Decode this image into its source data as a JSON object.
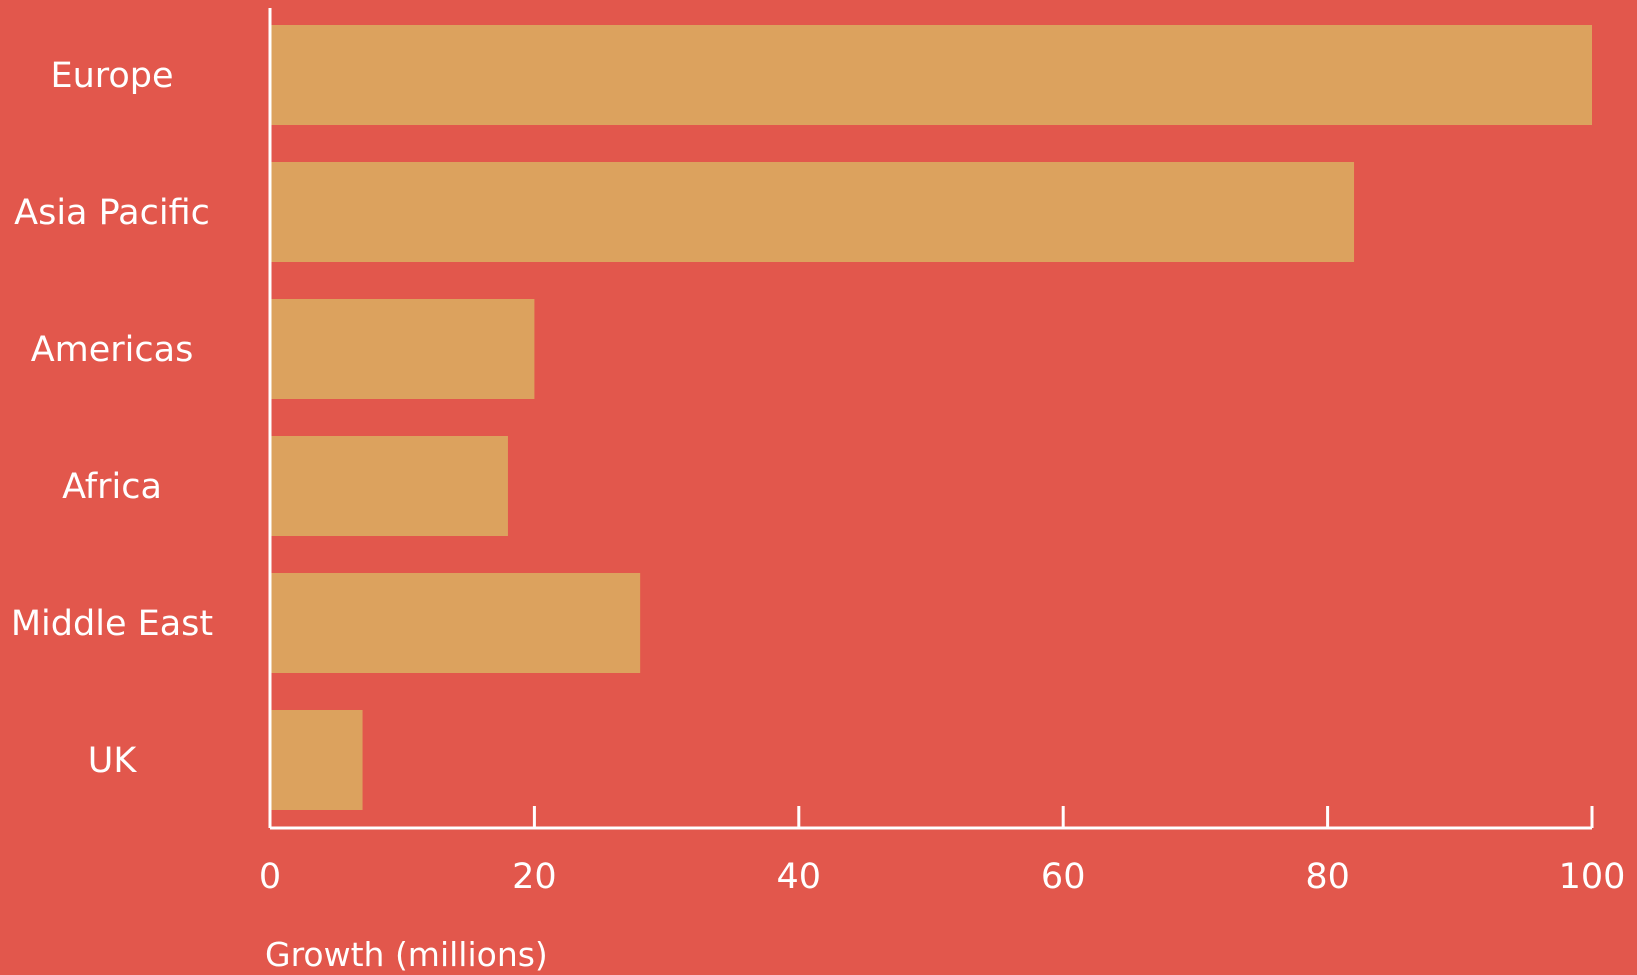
{
  "chart_data": {
    "type": "bar",
    "orientation": "horizontal",
    "categories": [
      "Europe",
      "Asia Pacific",
      "Americas",
      "Africa",
      "Middle East",
      "UK"
    ],
    "values": [
      100,
      82,
      20,
      18,
      28,
      7
    ],
    "xlabel": "Growth (millions)",
    "ylabel": "",
    "xlim": [
      0,
      100
    ],
    "xticks": [
      0,
      20,
      40,
      60,
      80,
      100
    ],
    "grid": false,
    "legend": "none"
  },
  "colors": {
    "background": "#e2574c",
    "bar": "#dca25e",
    "axis": "#ffffff",
    "text": "#ffffff"
  }
}
